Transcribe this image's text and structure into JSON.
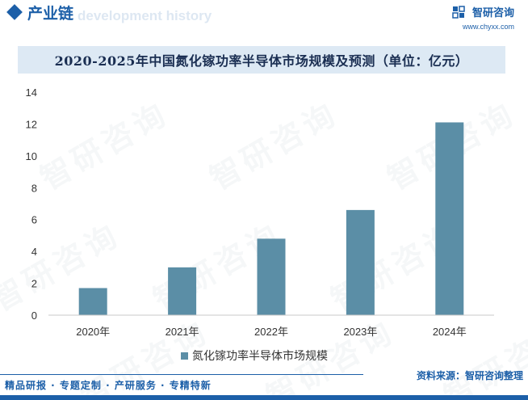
{
  "header": {
    "section_title": "产业链",
    "section_subtitle": "development history",
    "brand_name": "智研咨询",
    "brand_url": "www.chyxx.com"
  },
  "watermark_text": "智研咨询",
  "chart_data": {
    "type": "bar",
    "title": "2020-2025年中国氮化镓功率半导体市场规模及预测（单位：亿元）",
    "categories": [
      "2020年",
      "2021年",
      "2022年",
      "2023年",
      "2024年"
    ],
    "series": [
      {
        "name": "氮化镓功率半导体市场规模",
        "values": [
          1.7,
          3.0,
          4.8,
          6.6,
          12.1
        ]
      }
    ],
    "ylim": [
      0,
      14
    ],
    "yticks": [
      0,
      2,
      4,
      6,
      8,
      10,
      12,
      14
    ],
    "grid": false,
    "legend": "bottom",
    "colors": {
      "bar": "#5b8ea6",
      "axis": "#c8c8c8"
    }
  },
  "footer": {
    "left": "精品研报 · 专题定制 · 产研服务 · 专精特新",
    "right": "资料来源：智研咨询整理"
  },
  "colors": {
    "brand": "#1c5fa8",
    "banner": "#dde9f4"
  }
}
